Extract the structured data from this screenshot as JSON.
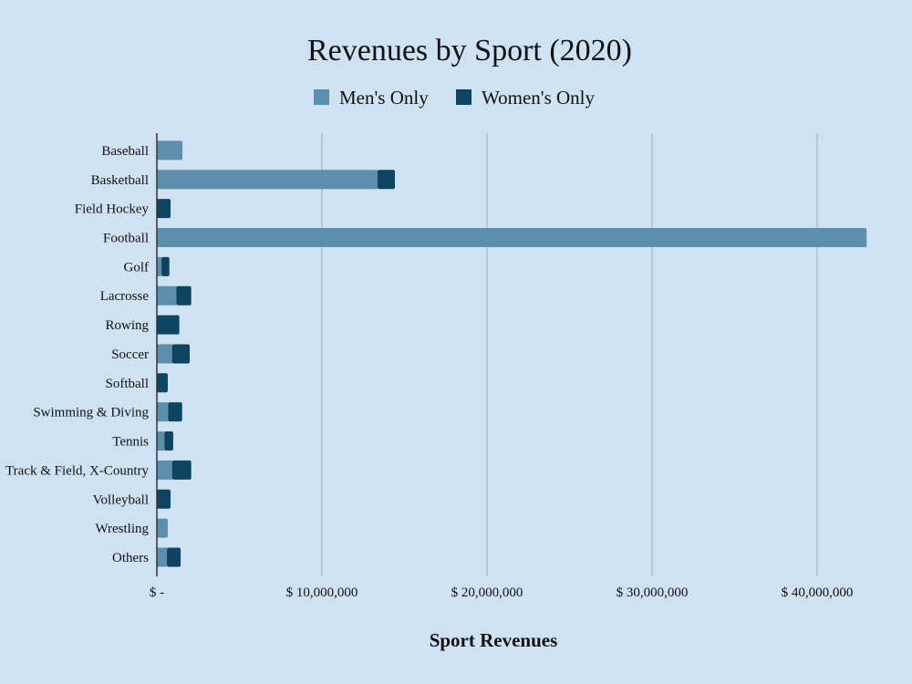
{
  "chart_data": {
    "type": "bar",
    "orientation": "horizontal",
    "stacked": true,
    "title": "Revenues by Sport (2020)",
    "xlabel": "Sport Revenues",
    "ylabel": "",
    "xlim": [
      0,
      43000000
    ],
    "x_ticks": [
      0,
      10000000,
      20000000,
      30000000,
      40000000
    ],
    "x_tick_labels": [
      "$ -",
      "$ 10,000,000",
      "$ 20,000,000",
      "$ 30,000,000",
      "$ 40,000,000"
    ],
    "grid": "vertical",
    "legend": "top-center",
    "categories": [
      "Baseball",
      "Basketball",
      "Field Hockey",
      "Football",
      "Golf",
      "Lacrosse",
      "Rowing",
      "Soccer",
      "Softball",
      "Swimming & Diving",
      "Tennis",
      "Track & Field, X-Country",
      "Volleyball",
      "Wrestling",
      "Others"
    ],
    "series": [
      {
        "name": "Men's Only",
        "color": "#5b8fad",
        "values": [
          1550000,
          13370000,
          0,
          43000000,
          280000,
          1180000,
          0,
          920000,
          0,
          680000,
          460000,
          920000,
          0,
          660000,
          610000
        ]
      },
      {
        "name": "Women's Only",
        "color": "#0d4462",
        "values": [
          0,
          1050000,
          830000,
          0,
          480000,
          900000,
          1360000,
          1070000,
          660000,
          850000,
          530000,
          1160000,
          830000,
          0,
          830000
        ]
      }
    ]
  },
  "colors": {
    "background": "#cfe2f3",
    "grid": "#a9b4bf"
  }
}
